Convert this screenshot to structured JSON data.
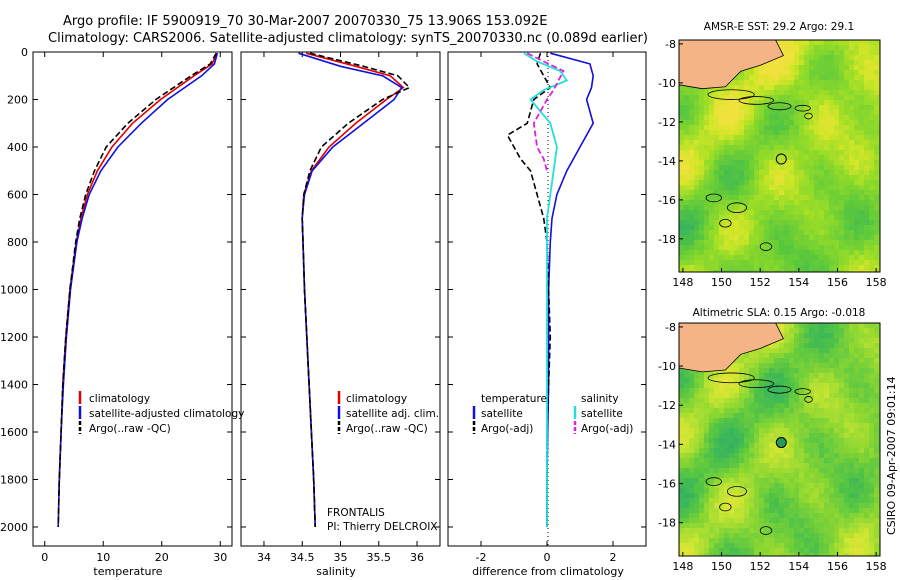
{
  "header": {
    "title_line1": "Argo profile: IF 5900919_70 30-Mar-2007 20070330_75 13.906S 153.092E",
    "title_line2": "Climatology: CARS2006. Satellite-adjusted climatology: synTS_20070330.nc (0.089d earlier)"
  },
  "side_label": "CSIRO 09-Apr-2007 09:01:14",
  "frontalis": {
    "line1": "FRONTALIS",
    "line2": "PI: Thierry DELCROIX"
  },
  "colors": {
    "climatology": "#e00000",
    "satellite": "#1010e0",
    "argo": "#000000",
    "sal_satellite": "#20e0e0",
    "sal_argo": "#e020e0",
    "land": "#f4b485",
    "coast": "#000000"
  },
  "chart_data": [
    {
      "type": "line",
      "name": "temperature",
      "xlabel": "temperature",
      "ylabel": "",
      "xlim": [
        -2,
        32
      ],
      "ylim": [
        2080,
        0
      ],
      "xticks": [
        0,
        10,
        20,
        30
      ],
      "yticks": [
        0,
        200,
        400,
        600,
        800,
        1000,
        1200,
        1400,
        1600,
        1800,
        2000
      ],
      "legend": [
        "climatology",
        "satellite-adjusted climatology",
        "Argo(..raw -QC)"
      ],
      "series": [
        {
          "name": "climatology",
          "depth": [
            5,
            50,
            100,
            200,
            300,
            400,
            500,
            600,
            700,
            800,
            1000,
            1200,
            1400,
            1600,
            1800,
            1870
          ],
          "values": [
            29.4,
            28.6,
            25.5,
            19.8,
            15.0,
            11.5,
            9.0,
            7.3,
            6.2,
            5.4,
            4.3,
            3.6,
            3.1,
            2.8,
            2.5,
            2.4
          ]
        },
        {
          "name": "satellite",
          "depth": [
            5,
            50,
            100,
            200,
            300,
            400,
            500,
            600,
            700,
            800,
            1000,
            1200,
            1400,
            1600,
            1800,
            2000
          ],
          "values": [
            29.5,
            29.0,
            26.8,
            21.0,
            16.5,
            12.5,
            9.6,
            7.6,
            6.4,
            5.5,
            4.4,
            3.7,
            3.2,
            2.8,
            2.5,
            2.3
          ]
        },
        {
          "name": "Argo(..raw -QC)",
          "depth": [
            5,
            50,
            100,
            200,
            300,
            400,
            500,
            600,
            700,
            800,
            1000,
            1200,
            1400,
            1600,
            1800,
            2000
          ],
          "values": [
            29.3,
            28.3,
            25.0,
            19.0,
            14.2,
            10.5,
            8.5,
            7.0,
            6.0,
            5.3,
            4.3,
            3.6,
            3.1,
            2.8,
            2.5,
            2.3
          ]
        }
      ]
    },
    {
      "type": "line",
      "name": "salinity",
      "xlabel": "salinity",
      "xlim": [
        33.7,
        36.3
      ],
      "ylim": [
        2080,
        0
      ],
      "xticks": [
        34,
        34.5,
        35,
        35.5,
        36
      ],
      "legend": [
        "climatology",
        "satellite adj. clim.",
        "Argo(..raw -QC)"
      ],
      "series": [
        {
          "name": "climatology",
          "depth": [
            5,
            60,
            100,
            150,
            200,
            300,
            400,
            500,
            600,
            700,
            800,
            1000,
            1200,
            1400,
            1600,
            1800,
            2000
          ],
          "values": [
            34.55,
            35.2,
            35.65,
            35.82,
            35.6,
            35.2,
            34.85,
            34.62,
            34.52,
            34.5,
            34.51,
            34.53,
            34.56,
            34.59,
            34.62,
            34.65,
            34.67
          ]
        },
        {
          "name": "satellite",
          "depth": [
            5,
            60,
            100,
            150,
            200,
            300,
            400,
            500,
            600,
            700,
            800,
            1000,
            1200,
            1400,
            1600,
            1800,
            2000
          ],
          "values": [
            34.45,
            35.0,
            35.55,
            35.8,
            35.7,
            35.3,
            34.9,
            34.63,
            34.53,
            34.5,
            34.51,
            34.53,
            34.56,
            34.59,
            34.62,
            34.65,
            34.67
          ]
        },
        {
          "name": "Argo(..raw -QC)",
          "depth": [
            5,
            60,
            100,
            150,
            200,
            300,
            400,
            500,
            600,
            700,
            800,
            1000,
            1200,
            1400,
            1600,
            1800,
            2000
          ],
          "values": [
            34.6,
            35.3,
            35.75,
            35.9,
            35.55,
            35.1,
            34.75,
            34.6,
            34.52,
            34.5,
            34.51,
            34.53,
            34.56,
            34.59,
            34.62,
            34.65,
            34.67
          ]
        }
      ]
    },
    {
      "type": "line",
      "name": "difference",
      "xlabel": "difference from climatology",
      "xlim": [
        -3,
        3
      ],
      "ylim": [
        2080,
        0
      ],
      "xticks": [
        -2,
        0,
        2
      ],
      "legend_left_title": "temperature",
      "legend_right_title": "salinity",
      "legend_left": [
        "satellite",
        "Argo(-adj)"
      ],
      "legend_right": [
        "satellite",
        "Argo(-adj)"
      ],
      "series": [
        {
          "name": "temperature satellite",
          "depth": [
            5,
            50,
            100,
            150,
            200,
            300,
            400,
            500,
            600,
            700,
            800,
            1000,
            1200,
            1400,
            1600,
            1800,
            2000
          ],
          "values": [
            0.1,
            1.3,
            1.4,
            1.35,
            1.2,
            1.4,
            1.0,
            0.6,
            0.3,
            0.15,
            0.1,
            0.05,
            0.05,
            0.05,
            0.02,
            0.0,
            0.0
          ]
        },
        {
          "name": "temperature Argo(-adj)",
          "depth": [
            5,
            50,
            100,
            150,
            200,
            300,
            350,
            400,
            450,
            500,
            600,
            700,
            800,
            1000,
            1200,
            1400,
            1600,
            1800,
            2000
          ],
          "values": [
            -0.2,
            -0.3,
            -0.1,
            0.1,
            -0.4,
            -0.6,
            -1.2,
            -1.0,
            -0.8,
            -0.5,
            -0.3,
            -0.1,
            0.0,
            0.05,
            0.1,
            0.05,
            0.0,
            0.0,
            0.0
          ]
        },
        {
          "name": "salinity satellite",
          "depth": [
            5,
            40,
            80,
            120,
            160,
            200,
            300,
            400,
            500,
            600,
            700,
            800,
            1000,
            1200,
            1400,
            1600,
            1800,
            2000
          ],
          "values": [
            -0.7,
            -0.3,
            0.4,
            0.6,
            -0.1,
            -0.5,
            0.1,
            0.3,
            0.2,
            0.1,
            0.0,
            0.0,
            0.0,
            0.0,
            0.0,
            0.0,
            0.0,
            0.0
          ]
        },
        {
          "name": "salinity Argo(-adj)",
          "depth": [
            5,
            40,
            80,
            120,
            160,
            200,
            300,
            400,
            450,
            500
          ],
          "values": [
            -0.6,
            -0.1,
            0.5,
            0.35,
            0.2,
            0.0,
            -0.4,
            -0.3,
            -0.1,
            0.0
          ]
        }
      ]
    },
    {
      "type": "heatmap",
      "name": "sst_map",
      "title": "AMSR-E SST: 29.2  Argo: 29.1",
      "xticks": [
        148,
        150,
        152,
        154,
        156,
        158
      ],
      "yticks": [
        -8,
        -10,
        -12,
        -14,
        -16,
        -18
      ],
      "xlim": [
        147.8,
        158.2
      ],
      "ylim": [
        -19.7,
        -7.8
      ],
      "argo_position": [
        153.092,
        -13.906
      ]
    },
    {
      "type": "heatmap",
      "name": "sla_map",
      "title": "Altimetric SLA: 0.15  Argo: -0.018",
      "xticks": [
        148,
        150,
        152,
        154,
        156,
        158
      ],
      "yticks": [
        -8,
        -10,
        -12,
        -14,
        -16,
        -18
      ],
      "xlim": [
        147.8,
        158.2
      ],
      "ylim": [
        -19.7,
        -7.8
      ],
      "argo_position": [
        153.092,
        -13.906
      ]
    }
  ]
}
